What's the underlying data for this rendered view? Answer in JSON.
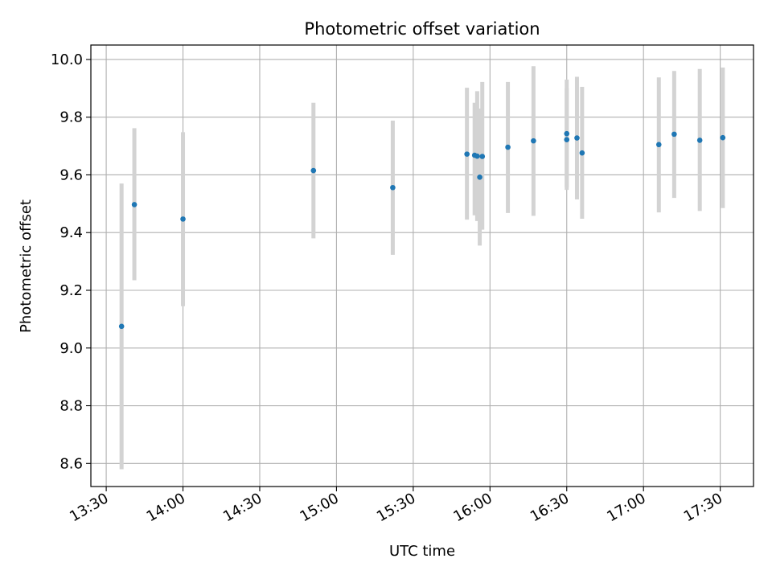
{
  "chart_data": {
    "type": "scatter",
    "title": "Photometric offset variation",
    "xlabel": "UTC time",
    "ylabel": "Photometric offset",
    "x_ticks": [
      "13:30",
      "14:00",
      "14:30",
      "15:00",
      "15:30",
      "16:00",
      "16:30",
      "17:00",
      "17:30"
    ],
    "y_ticks": [
      "8.6",
      "8.8",
      "9.0",
      "9.2",
      "9.4",
      "9.6",
      "9.8",
      "10.0"
    ],
    "xlim": [
      "13:24",
      "17:43"
    ],
    "ylim": [
      8.52,
      10.05
    ],
    "grid": true,
    "colors": {
      "point": "#1f77b4",
      "errorbar": "#d3d3d3",
      "grid": "#b0b0b0"
    },
    "series": [
      {
        "points": [
          {
            "time": "13:36",
            "y": 9.075,
            "low": 8.58,
            "high": 9.57
          },
          {
            "time": "13:41",
            "y": 9.497,
            "low": 9.235,
            "high": 9.762
          },
          {
            "time": "14:00",
            "y": 9.447,
            "low": 9.145,
            "high": 9.748
          },
          {
            "time": "14:51",
            "y": 9.615,
            "low": 9.38,
            "high": 9.85
          },
          {
            "time": "15:22",
            "y": 9.556,
            "low": 9.323,
            "high": 9.788
          },
          {
            "time": "15:51",
            "y": 9.672,
            "low": 9.445,
            "high": 9.902
          },
          {
            "time": "15:54",
            "y": 9.668,
            "low": 9.46,
            "high": 9.85
          },
          {
            "time": "15:55",
            "y": 9.665,
            "low": 9.44,
            "high": 9.89
          },
          {
            "time": "15:56",
            "y": 9.592,
            "low": 9.355,
            "high": 9.83
          },
          {
            "time": "15:57",
            "y": 9.664,
            "low": 9.41,
            "high": 9.922
          },
          {
            "time": "16:07",
            "y": 9.696,
            "low": 9.468,
            "high": 9.922
          },
          {
            "time": "16:17",
            "y": 9.718,
            "low": 9.458,
            "high": 9.977
          },
          {
            "time": "16:30",
            "y": 9.743,
            "low": 9.558,
            "high": 9.93
          },
          {
            "time": "16:30",
            "y": 9.722,
            "low": 9.548,
            "high": 9.9
          },
          {
            "time": "16:34",
            "y": 9.728,
            "low": 9.515,
            "high": 9.94
          },
          {
            "time": "16:36",
            "y": 9.676,
            "low": 9.448,
            "high": 9.905
          },
          {
            "time": "17:06",
            "y": 9.705,
            "low": 9.47,
            "high": 9.938
          },
          {
            "time": "17:12",
            "y": 9.741,
            "low": 9.52,
            "high": 9.96
          },
          {
            "time": "17:22",
            "y": 9.72,
            "low": 9.475,
            "high": 9.967
          },
          {
            "time": "17:31",
            "y": 9.729,
            "low": 9.485,
            "high": 9.972
          }
        ]
      }
    ]
  }
}
